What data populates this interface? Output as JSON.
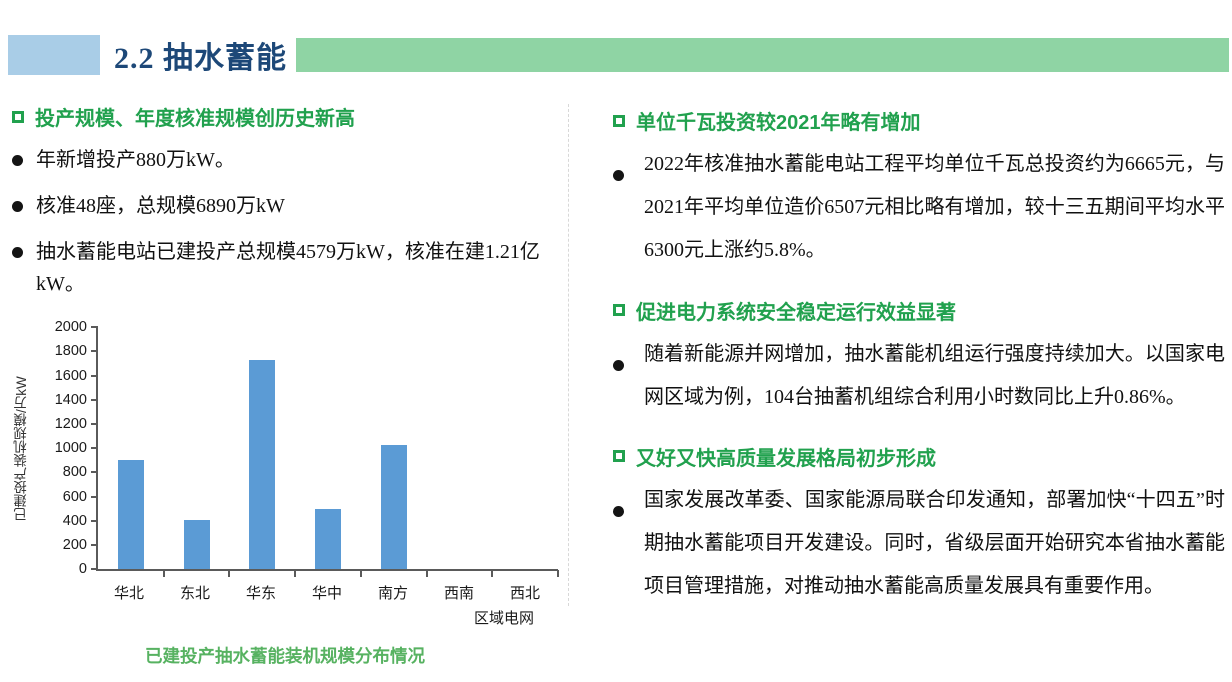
{
  "header": {
    "title": "2.2 抽水蓄能"
  },
  "left": {
    "heading": "投产规模、年度核准规模创历史新高",
    "bullets": [
      "年新增投产880万kW。",
      "核准48座，总规模6890万kW",
      "抽水蓄能电站已建投产总规模4579万kW，核准在建1.21亿kW。"
    ]
  },
  "right": {
    "sections": [
      {
        "heading": "单位千瓦投资较2021年略有增加",
        "bullet": "2022年核准抽水蓄能电站工程平均单位千瓦总投资约为6665元，与2021年平均单位造价6507元相比略有增加，较十三五期间平均水平6300元上涨约5.8%。"
      },
      {
        "heading": "促进电力系统安全稳定运行效益显著",
        "bullet": "随着新能源并网增加，抽水蓄能机组运行强度持续加大。以国家电网区域为例，104台抽蓄机组综合利用小时数同比上升0.86%。"
      },
      {
        "heading": "又好又快高质量发展格局初步形成",
        "bullet": "国家发展改革委、国家能源局联合印发通知，部署加快“十四五”时期抽水蓄能项目开发建设。同时，省级层面开始研究本省抽水蓄能项目管理措施，对推动抽水蓄能高质量发展具有重要作用。"
      }
    ]
  },
  "chart_data": {
    "type": "bar",
    "categories": [
      "华北",
      "东北",
      "华东",
      "华中",
      "南方",
      "西南",
      "西北"
    ],
    "values": [
      900,
      410,
      1730,
      500,
      1030,
      0,
      0
    ],
    "title": "已建投产抽水蓄能装机规模分布情况",
    "xlabel": "区域电网",
    "ylabel": "已建投产装机规模/万kW",
    "ylim": [
      0,
      2000
    ],
    "ytick_step": 200,
    "grid": false,
    "legend": false,
    "bar_color": "#5b9bd5"
  },
  "colors": {
    "accent_green": "#21a14e",
    "caption_green": "#57b261",
    "title_blue": "#1d4878",
    "header_blue_block": "#a9cde7",
    "header_green_band": "#8fd4a4",
    "bar_blue": "#5b9bd5"
  }
}
